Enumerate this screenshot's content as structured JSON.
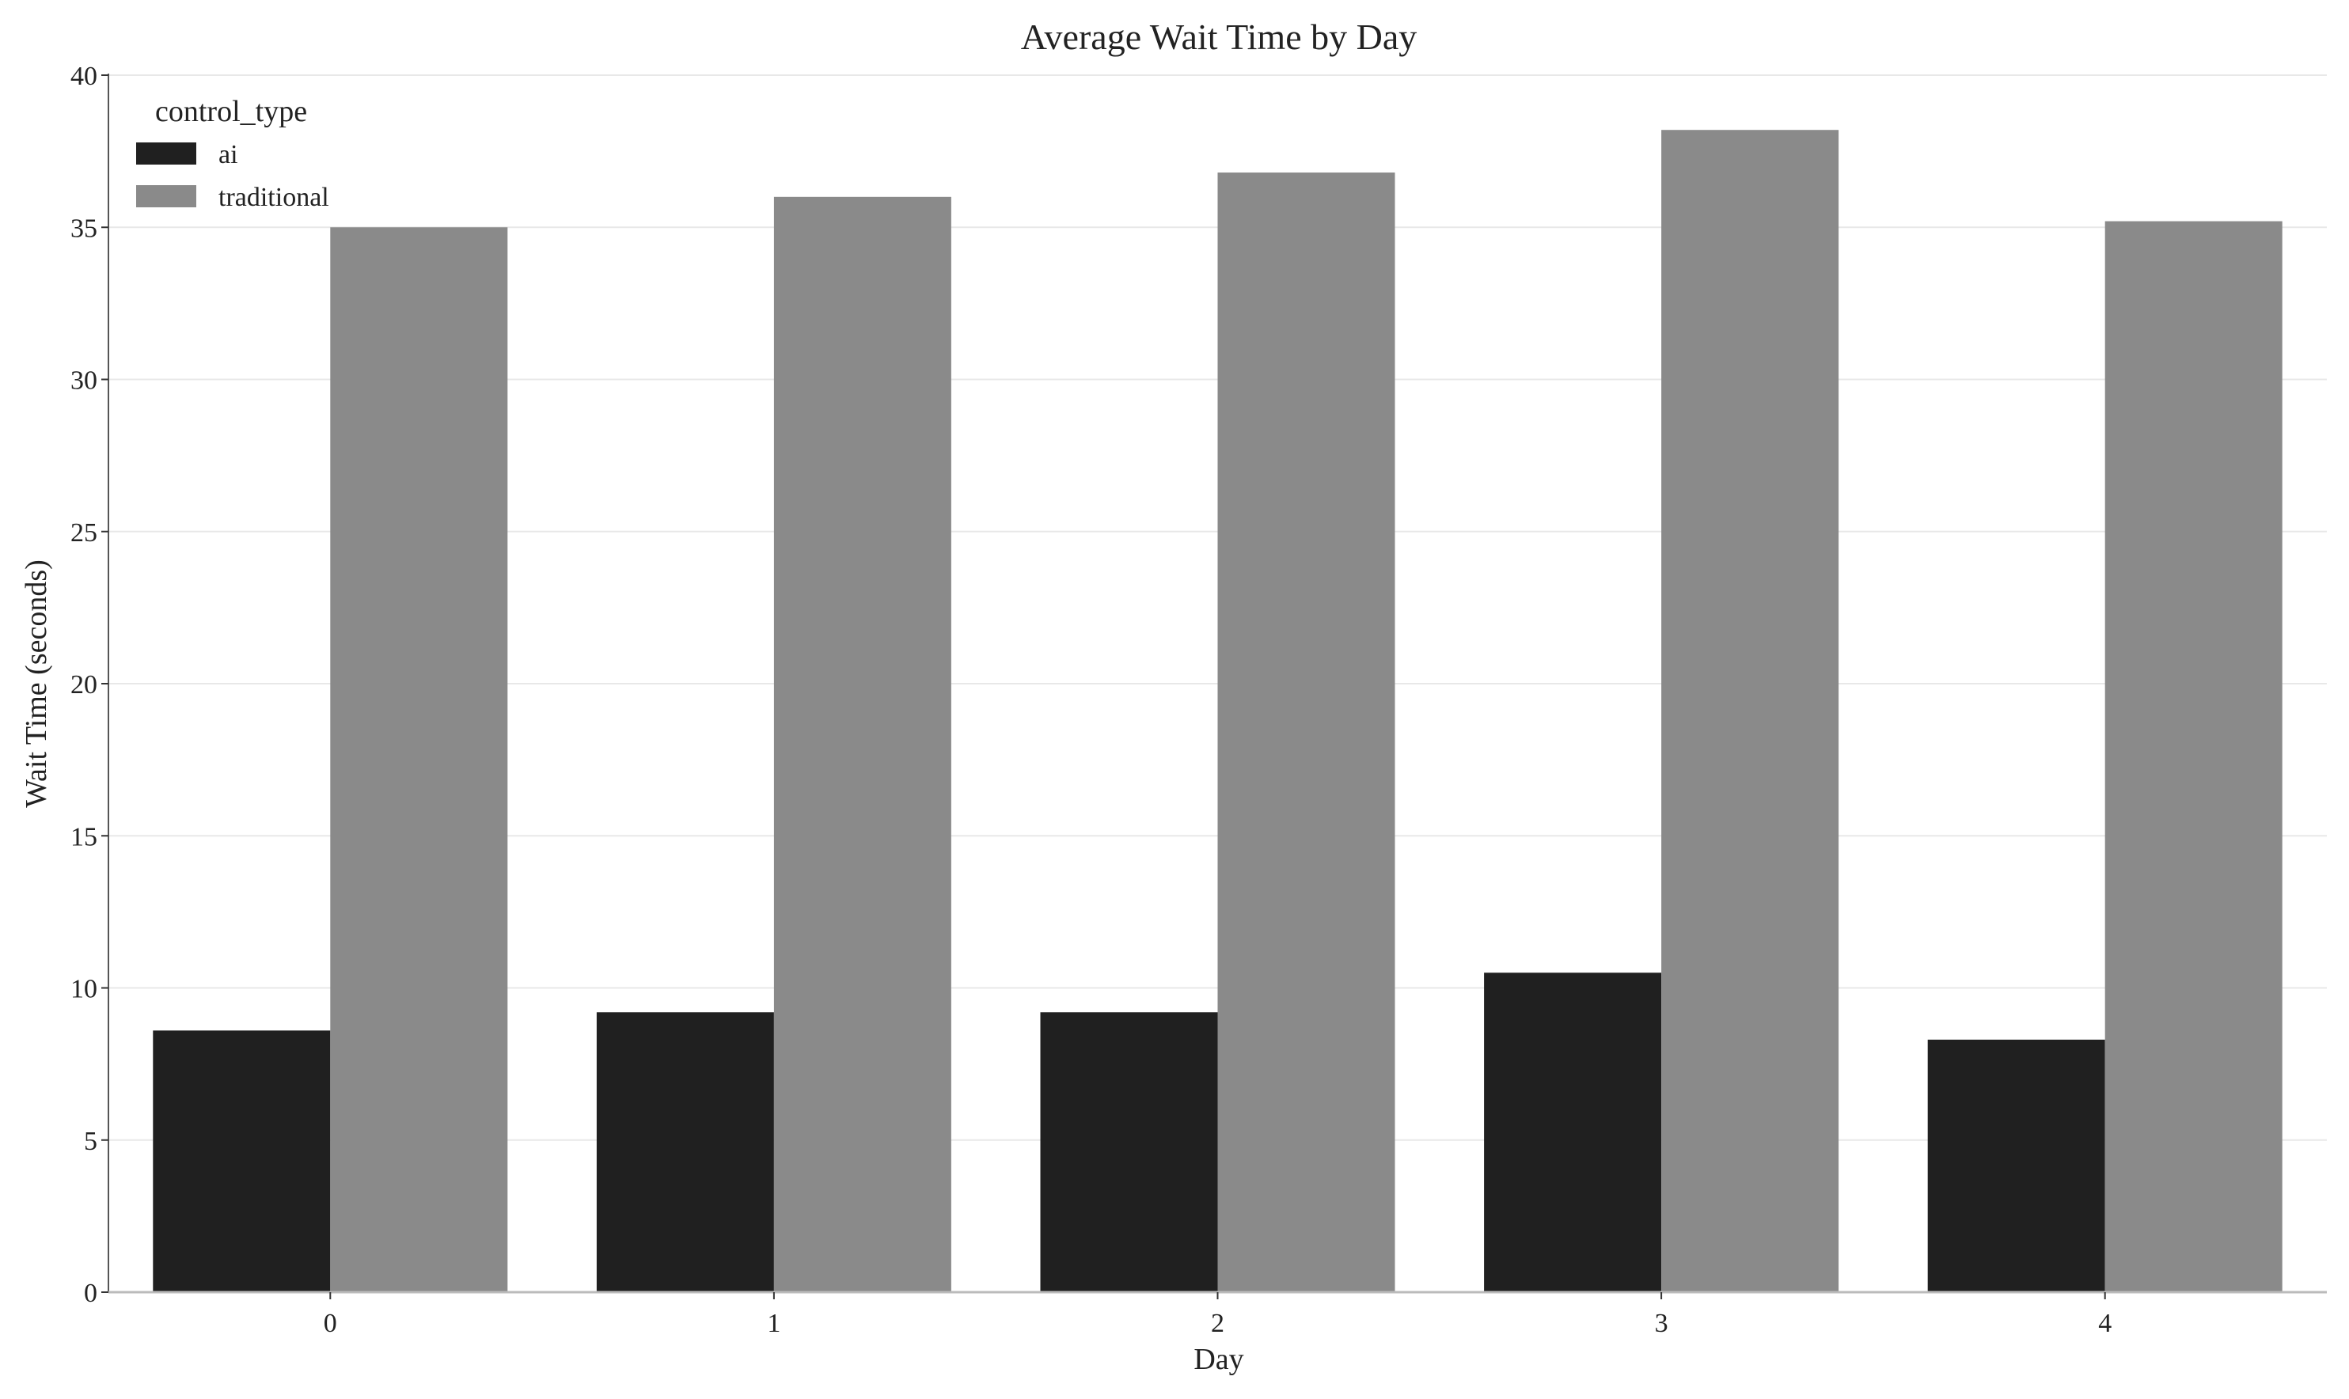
{
  "chart_data": {
    "type": "bar",
    "title": "Average Wait Time by Day",
    "xlabel": "Day",
    "ylabel": "Wait Time (seconds)",
    "categories": [
      "0",
      "1",
      "2",
      "3",
      "4"
    ],
    "series": [
      {
        "name": "ai",
        "color": "#202020",
        "values": [
          8.6,
          9.2,
          9.2,
          10.5,
          8.3
        ]
      },
      {
        "name": "traditional",
        "color": "#8a8a8a",
        "values": [
          35.0,
          36.0,
          36.8,
          38.2,
          35.2
        ]
      }
    ],
    "ylim": [
      0,
      40
    ],
    "yticks": [
      0,
      5,
      10,
      15,
      20,
      25,
      30,
      35,
      40
    ],
    "grid": "horizontal",
    "legend": {
      "title": "control_type",
      "position": "top-left"
    }
  }
}
